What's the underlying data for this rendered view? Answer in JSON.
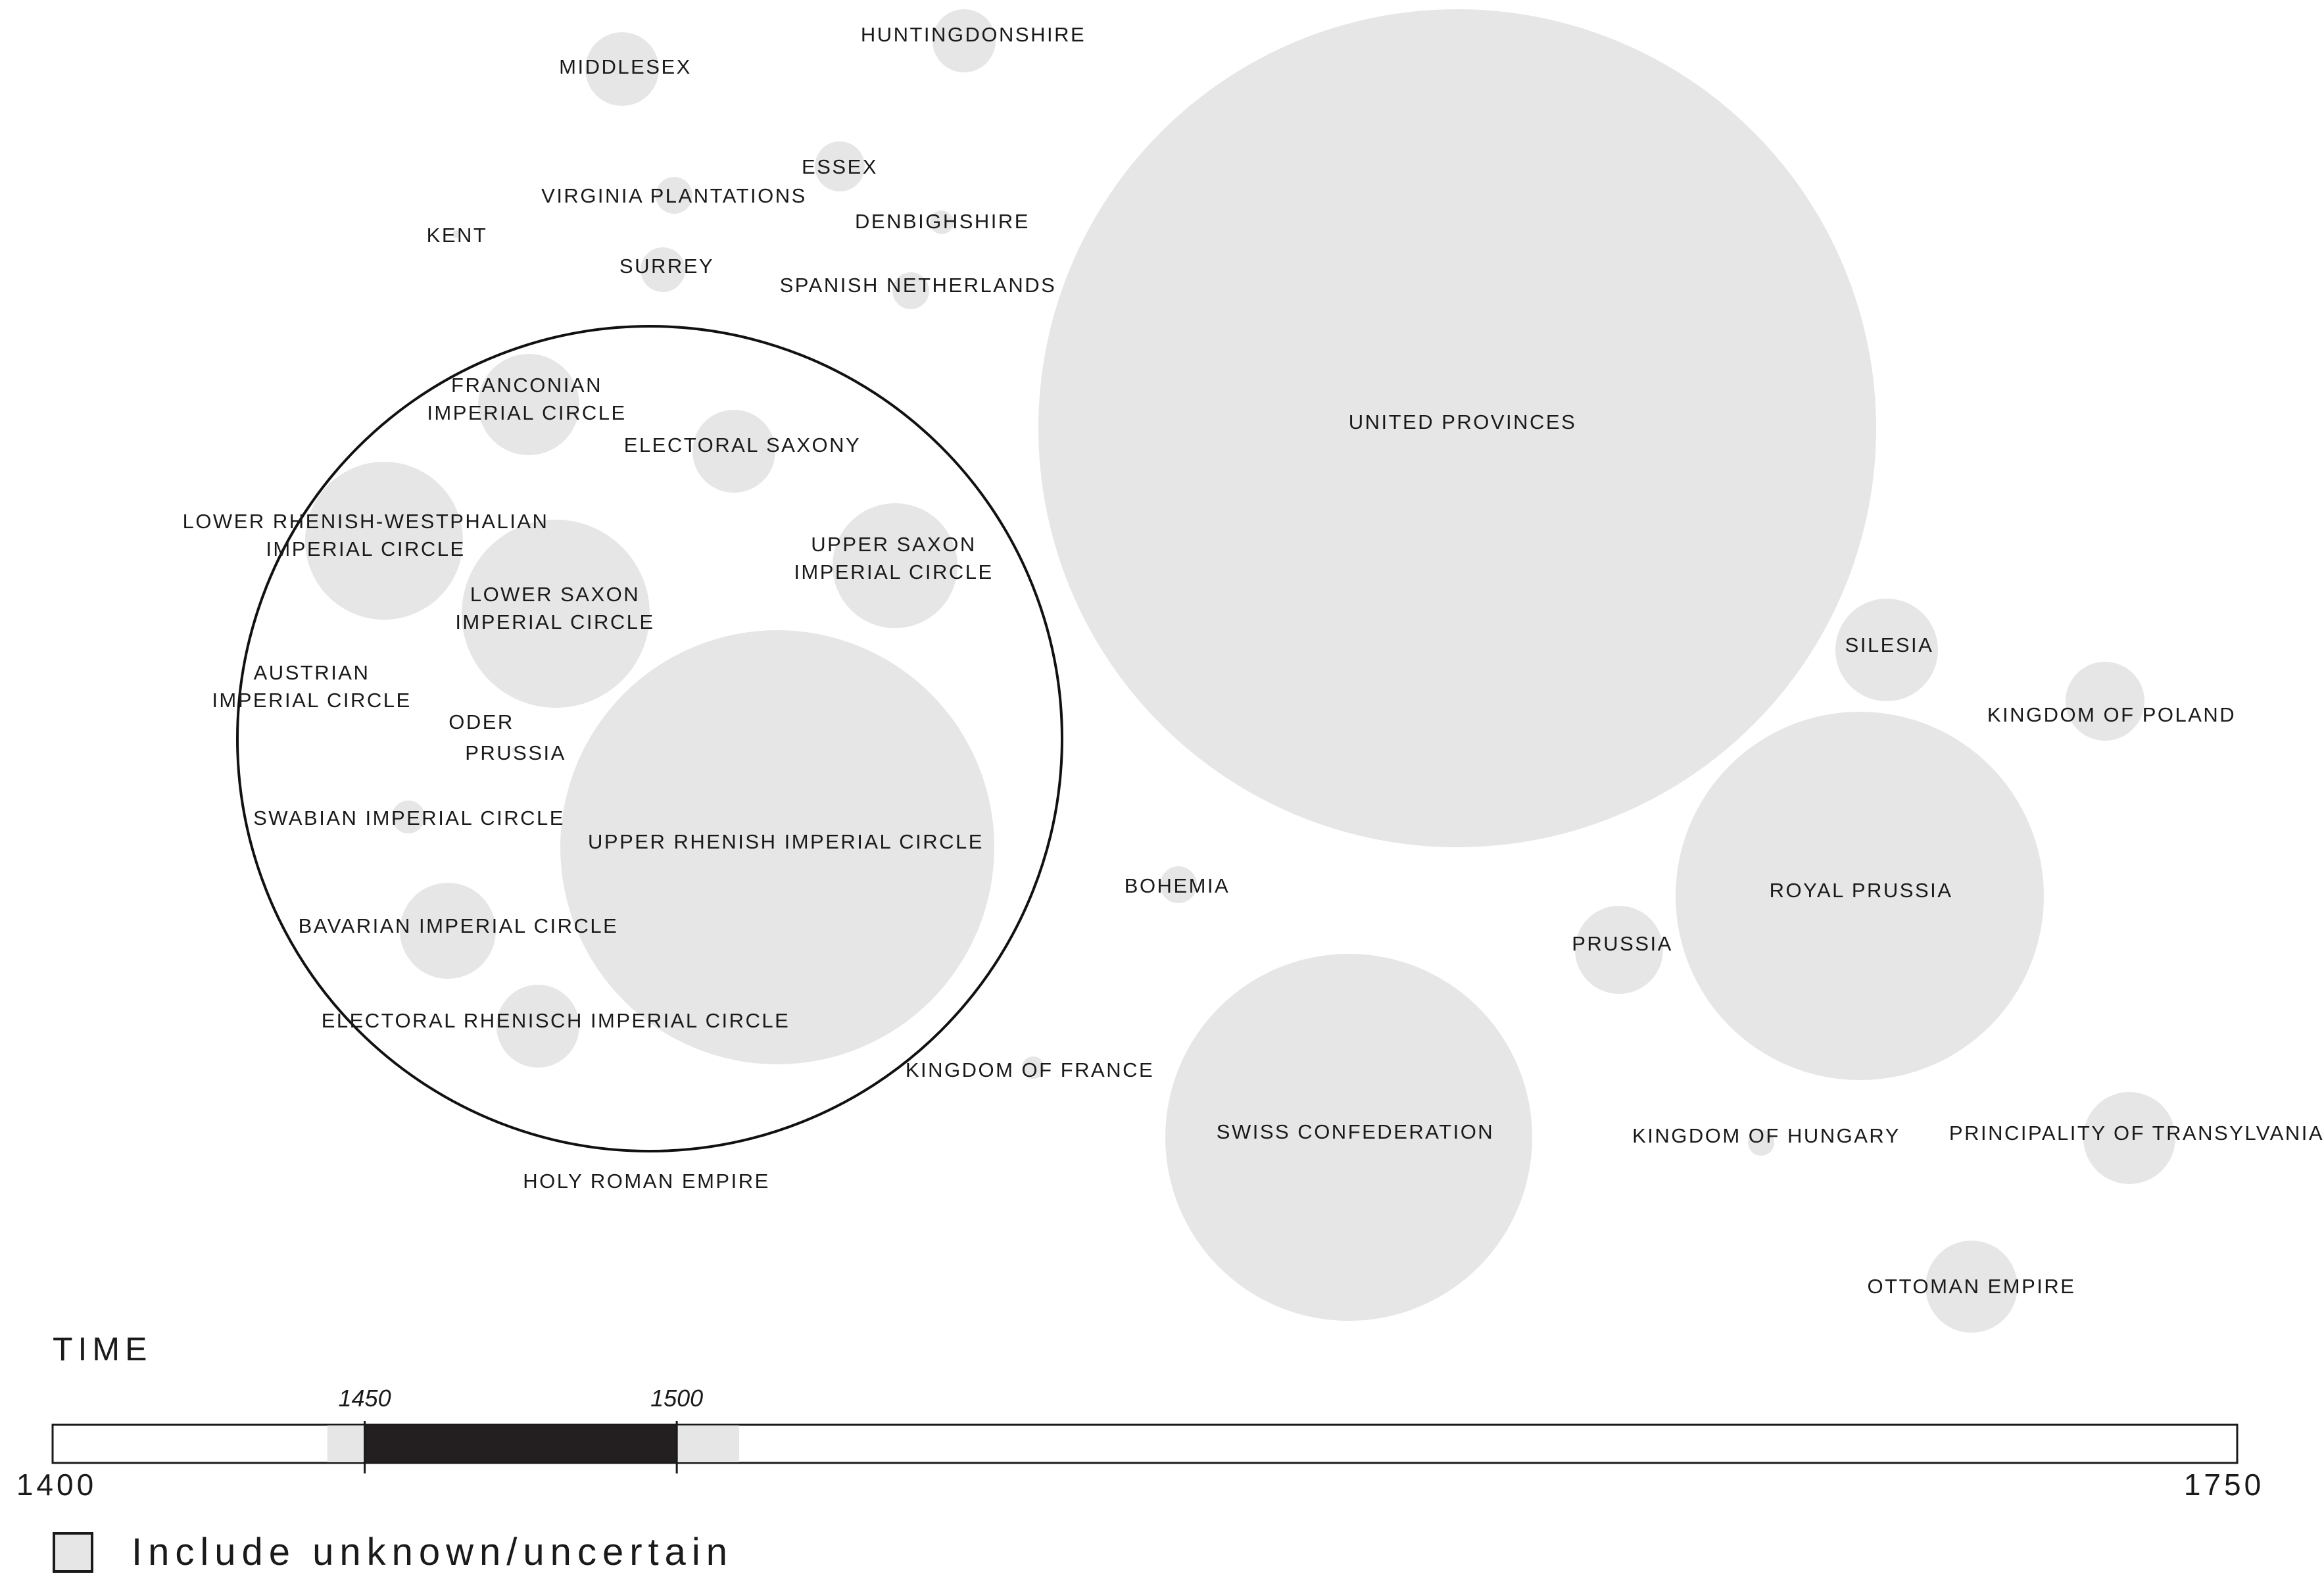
{
  "map": {
    "bubble_color": "#e6e6e6",
    "outline_color": "#111111",
    "group_label": "HOLY ROMAN EMPIRE",
    "bubbles": [
      {
        "id": "middlesex",
        "label": [
          "MIDDLESEX"
        ]
      },
      {
        "id": "huntingdonshire",
        "label": [
          "HUNTINGDONSHIRE"
        ]
      },
      {
        "id": "essex",
        "label": [
          "ESSEX"
        ]
      },
      {
        "id": "virginia-plantations",
        "label": [
          "VIRGINIA PLANTATIONS"
        ]
      },
      {
        "id": "denbighshire",
        "label": [
          "DENBIGHSHIRE"
        ]
      },
      {
        "id": "kent",
        "label": [
          "KENT"
        ]
      },
      {
        "id": "surrey",
        "label": [
          "SURREY"
        ]
      },
      {
        "id": "spanish-netherlands",
        "label": [
          "SPANISH NETHERLANDS"
        ]
      },
      {
        "id": "franconian-imperial-circle",
        "label": [
          "FRANCONIAN",
          "IMPERIAL CIRCLE"
        ]
      },
      {
        "id": "electoral-saxony",
        "label": [
          "ELECTORAL SAXONY"
        ]
      },
      {
        "id": "lower-rhenish-westphalian-imperial-circle",
        "label": [
          "LOWER RHENISH-WESTPHALIAN",
          "IMPERIAL CIRCLE"
        ]
      },
      {
        "id": "upper-saxon-imperial-circle",
        "label": [
          "UPPER SAXON",
          "IMPERIAL CIRCLE"
        ]
      },
      {
        "id": "lower-saxon-imperial-circle",
        "label": [
          "LOWER SAXON",
          "IMPERIAL CIRCLE"
        ]
      },
      {
        "id": "austrian-imperial-circle",
        "label": [
          "AUSTRIAN",
          "IMPERIAL CIRCLE"
        ]
      },
      {
        "id": "oder",
        "label": [
          "ODER"
        ]
      },
      {
        "id": "prussia-inner",
        "label": [
          "PRUSSIA"
        ]
      },
      {
        "id": "swabian-imperial-circle",
        "label": [
          "SWABIAN IMPERIAL CIRCLE"
        ]
      },
      {
        "id": "upper-rhenish-imperial-circle",
        "label": [
          "UPPER RHENISH IMPERIAL CIRCLE"
        ]
      },
      {
        "id": "bavarian-imperial-circle",
        "label": [
          "BAVARIAN IMPERIAL CIRCLE"
        ]
      },
      {
        "id": "electoral-rhenisch-imperial-circle",
        "label": [
          "ELECTORAL RHENISCH IMPERIAL CIRCLE"
        ]
      },
      {
        "id": "united-provinces",
        "label": [
          "UNITED PROVINCES"
        ]
      },
      {
        "id": "silesia",
        "label": [
          "SILESIA"
        ]
      },
      {
        "id": "kingdom-of-poland",
        "label": [
          "KINGDOM OF POLAND"
        ]
      },
      {
        "id": "royal-prussia",
        "label": [
          "ROYAL PRUSSIA"
        ]
      },
      {
        "id": "prussia",
        "label": [
          "PRUSSIA"
        ]
      },
      {
        "id": "bohemia",
        "label": [
          "BOHEMIA"
        ]
      },
      {
        "id": "kingdom-of-france",
        "label": [
          "KINGDOM OF FRANCE"
        ]
      },
      {
        "id": "swiss-confederation",
        "label": [
          "SWISS CONFEDERATION"
        ]
      },
      {
        "id": "kingdom-of-hungary",
        "label": [
          "KINGDOM OF HUNGARY"
        ]
      },
      {
        "id": "principality-of-transylvania",
        "label": [
          "PRINCIPALITY OF TRANSYLVANIA"
        ]
      },
      {
        "id": "ottoman-empire",
        "label": [
          "OTTOMAN EMPIRE"
        ]
      }
    ]
  },
  "timeline": {
    "heading": "TIME",
    "min": 1400,
    "max": 1750,
    "min_label": "1400",
    "max_label": "1750",
    "selected_start": 1450,
    "selected_end": 1500,
    "selected_start_label": "1450",
    "selected_end_label": "1500",
    "uncertain_start": 1444,
    "uncertain_end": 1510,
    "selected_color": "#231f20",
    "uncertain_color": "#e6e6e6"
  },
  "filter": {
    "include_unknown_label": "Include unknown/uncertain",
    "include_unknown_checked": false
  }
}
